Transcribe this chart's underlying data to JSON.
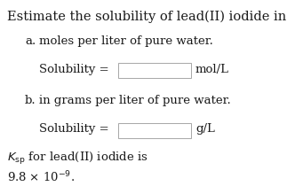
{
  "bg_color": "#ffffff",
  "title_line": "Estimate the solubility of lead(II) iodide in",
  "part_a_label": "a.",
  "part_a_text": "moles per liter of pure water.",
  "part_b_label": "b.",
  "part_b_text": "in grams per liter of pure water.",
  "part_a_unit": "mol/L",
  "part_b_unit": "g/L",
  "ksp_line1": "for lead(II) iodide is",
  "ksp_line2": "9.8 × 10",
  "ksp_exp": "-9",
  "text_color": "#1a1a1a",
  "box_color": "#ffffff",
  "box_edge_color": "#999999",
  "font_size_title": 10.5,
  "font_size_body": 9.5,
  "fig_width": 3.32,
  "fig_height": 2.19,
  "dpi": 100
}
